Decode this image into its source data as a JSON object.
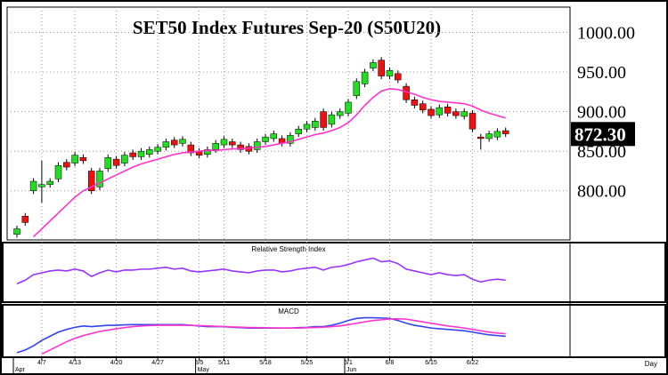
{
  "chart_data": [
    {
      "type": "candlestick",
      "title": "SET50  Index  Futures  Sep-20  (S50U20)",
      "categories": [
        null,
        null,
        null,
        "4/7",
        null,
        null,
        null,
        "4/13",
        null,
        null,
        null,
        null,
        "4/20",
        null,
        null,
        null,
        null,
        "4/27",
        null,
        null,
        null,
        null,
        "5/5",
        null,
        null,
        "5/11",
        null,
        null,
        null,
        null,
        "5/18",
        null,
        null,
        null,
        null,
        "5/25",
        null,
        null,
        null,
        null,
        "6/1",
        null,
        null,
        null,
        null,
        "6/8",
        null,
        null,
        null,
        null,
        "6/15",
        null,
        null,
        null,
        null,
        "6/22",
        null,
        null,
        null,
        null
      ],
      "months": [
        "Apr",
        null,
        null,
        null,
        null,
        null,
        null,
        null,
        null,
        null,
        null,
        null,
        null,
        null,
        null,
        null,
        null,
        null,
        null,
        null,
        null,
        null,
        "May",
        null,
        null,
        null,
        null,
        null,
        null,
        null,
        null,
        null,
        null,
        null,
        null,
        null,
        null,
        null,
        null,
        null,
        "Jun",
        null,
        null,
        null,
        null,
        null,
        null,
        null,
        null,
        null,
        null,
        null,
        null,
        null,
        null,
        null,
        null,
        null,
        null,
        null
      ],
      "x_label": "Day",
      "open": [
        745,
        768,
        800,
        805,
        808,
        815,
        836,
        835,
        842,
        825,
        805,
        828,
        840,
        835,
        848,
        843,
        846,
        850,
        855,
        864,
        860,
        858,
        850,
        846,
        852,
        858,
        862,
        858,
        856,
        852,
        862,
        866,
        866,
        860,
        872,
        878,
        880,
        900,
        884,
        895,
        898,
        920,
        935,
        955,
        965,
        945,
        948,
        932,
        915,
        910,
        903,
        896,
        906,
        900,
        894,
        898,
        868,
        866,
        868,
        876
      ],
      "high": [
        756,
        772,
        816,
        838,
        816,
        836,
        840,
        849,
        846,
        829,
        829,
        846,
        844,
        849,
        852,
        854,
        856,
        859,
        866,
        868,
        869,
        862,
        854,
        856,
        864,
        869,
        866,
        862,
        860,
        866,
        872,
        876,
        870,
        874,
        882,
        888,
        892,
        904,
        900,
        904,
        916,
        942,
        954,
        966,
        969,
        956,
        952,
        936,
        919,
        914,
        907,
        909,
        910,
        904,
        904,
        902,
        872,
        876,
        879,
        880
      ],
      "low": [
        741,
        756,
        796,
        785,
        804,
        811,
        826,
        831,
        834,
        796,
        801,
        824,
        828,
        831,
        839,
        839,
        842,
        846,
        851,
        854,
        856,
        844,
        841,
        842,
        848,
        854,
        854,
        848,
        846,
        848,
        858,
        862,
        856,
        856,
        868,
        874,
        876,
        876,
        880,
        891,
        894,
        916,
        931,
        951,
        941,
        941,
        936,
        911,
        904,
        898,
        891,
        892,
        894,
        891,
        890,
        874,
        852,
        862,
        864,
        868
      ],
      "close": [
        752,
        760,
        812,
        808,
        812,
        832,
        830,
        845,
        838,
        800,
        825,
        842,
        832,
        845,
        843,
        850,
        852,
        855,
        862,
        858,
        865,
        848,
        845,
        852,
        860,
        865,
        858,
        852,
        850,
        862,
        868,
        872,
        860,
        870,
        878,
        884,
        888,
        880,
        896,
        900,
        912,
        938,
        950,
        962,
        945,
        952,
        940,
        915,
        908,
        902,
        895,
        905,
        898,
        895,
        900,
        878,
        866,
        872,
        875,
        872
      ],
      "up_color": "#22dd22",
      "down_color": "#ee1111",
      "overlay": {
        "color": "#ff33cc",
        "values": [
          null,
          null,
          742,
          752,
          762,
          772,
          782,
          792,
          800,
          805,
          810,
          815,
          820,
          825,
          830,
          834,
          837,
          840,
          843,
          846,
          848,
          849,
          850,
          851,
          851,
          852,
          853,
          853,
          854,
          855,
          856,
          858,
          860,
          862,
          865,
          868,
          871,
          873,
          876,
          880,
          886,
          896,
          908,
          918,
          926,
          929,
          928,
          925,
          922,
          918,
          915,
          913,
          912,
          911,
          910,
          907,
          902,
          898,
          895,
          892
        ]
      },
      "ylim": [
        738,
        1032
      ],
      "yticks": [
        {
          "value": 800,
          "label": "800.00"
        },
        {
          "value": 850,
          "label": "850.00"
        },
        {
          "value": 900,
          "label": "900.00"
        },
        {
          "value": 950,
          "label": "950.00"
        },
        {
          "value": 1000,
          "label": "1000.00"
        }
      ],
      "last_price": {
        "value": 872.3,
        "label": "872.30"
      },
      "grid": true
    },
    {
      "type": "line",
      "title": "Relative Strength Index",
      "ylim": [
        30,
        90
      ],
      "series": [
        {
          "color": "#9933ff",
          "values": [
            48,
            52,
            58,
            60,
            62,
            63,
            62,
            64,
            62,
            56,
            60,
            63,
            61,
            63,
            63,
            64,
            64,
            65,
            66,
            64,
            65,
            62,
            61,
            62,
            63,
            64,
            62,
            61,
            60,
            62,
            63,
            63,
            61,
            62,
            64,
            65,
            66,
            63,
            66,
            67,
            69,
            72,
            74,
            76,
            72,
            73,
            70,
            64,
            62,
            60,
            58,
            60,
            58,
            57,
            58,
            53,
            50,
            52,
            53,
            52
          ]
        }
      ]
    },
    {
      "type": "line",
      "title": "MACD",
      "ylim": [
        -10,
        25
      ],
      "series": [
        {
          "color": "#3344ee",
          "values": [
            -8,
            -6,
            -3,
            1,
            4,
            7,
            9,
            10.5,
            11.5,
            11,
            11.5,
            12,
            12,
            12.3,
            12.5,
            12.5,
            12.5,
            12.5,
            12.5,
            12.5,
            12.5,
            12,
            11.5,
            11,
            11,
            11,
            10.5,
            10.3,
            10,
            10,
            10,
            10,
            10,
            10,
            10.3,
            10.5,
            11,
            11,
            12,
            13.5,
            15.5,
            17,
            17.5,
            17.5,
            17.3,
            17,
            15.5,
            13.5,
            12,
            11,
            10,
            9.5,
            9,
            8.5,
            8,
            7,
            6,
            5,
            4.5,
            4
          ]
        },
        {
          "color": "#ff33cc",
          "values": [
            null,
            null,
            null,
            -9,
            -6,
            -3,
            0,
            2.5,
            4.5,
            6,
            7.5,
            8.5,
            9.5,
            10.3,
            11,
            11.5,
            11.8,
            12,
            12,
            12,
            12,
            12,
            11.8,
            11.5,
            11.3,
            11,
            10.8,
            10.6,
            10.4,
            10.3,
            10.2,
            10.1,
            10,
            10,
            10,
            10.2,
            10.4,
            10.6,
            11,
            11.5,
            12.5,
            13.5,
            14.5,
            15.5,
            16,
            16.5,
            16.8,
            16.5,
            15.5,
            14.5,
            13.5,
            12.5,
            11.5,
            10.8,
            10,
            9,
            8,
            7,
            6.3,
            5.8
          ]
        }
      ]
    }
  ]
}
